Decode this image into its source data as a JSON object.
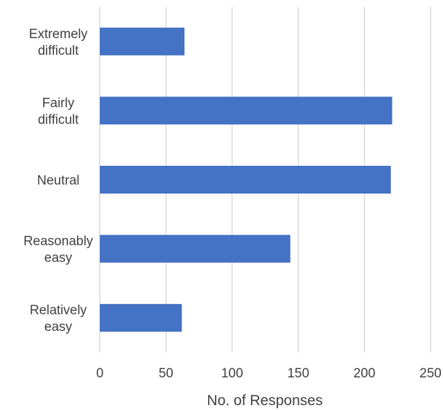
{
  "chart_data": {
    "type": "bar",
    "orientation": "horizontal",
    "categories": [
      [
        "Extremely",
        "difficult"
      ],
      [
        "Fairly",
        "difficult"
      ],
      [
        "Neutral"
      ],
      [
        "Reasonably",
        "easy"
      ],
      [
        "Relatively",
        "easy"
      ]
    ],
    "values": [
      64,
      221,
      220,
      144,
      62
    ],
    "xlabel": "No. of Responses",
    "ylabel": "",
    "xlim": [
      0,
      250
    ],
    "xticks": [
      "0",
      "50",
      "100",
      "150",
      "200",
      "250"
    ],
    "grid": "vertical",
    "bar_color": "#4472C4",
    "grid_color": "#D9D9D9"
  }
}
